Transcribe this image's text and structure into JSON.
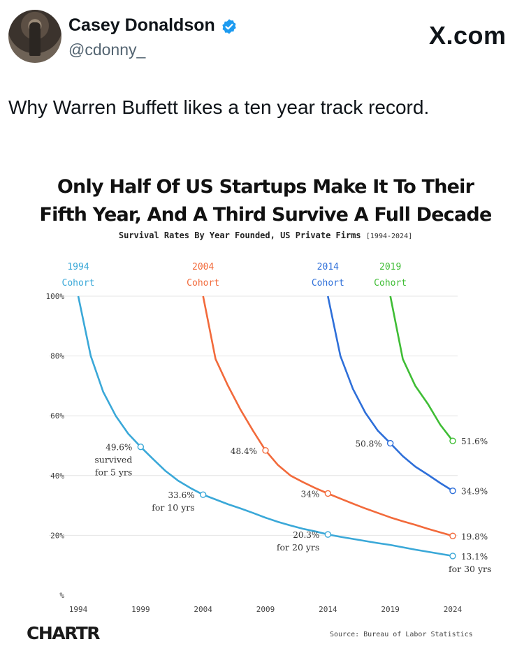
{
  "post": {
    "author_name": "Casey Donaldson",
    "author_handle": "@cdonny_",
    "site_label": "X.com",
    "text": "Why Warren Buffett likes a ten year track record."
  },
  "icons": {
    "avatar": "profile-photo",
    "verified": "verified-badge-icon"
  },
  "colors": {
    "c1994": "#3aa8d8",
    "c2004": "#f26a3b",
    "c2014": "#2e6fd9",
    "c2019": "#3fbd35",
    "verified": "#1d9bf0"
  },
  "chart_data": {
    "type": "line",
    "title_line1": "Only Half Of US Startups Make It To Their",
    "title_line2": "Fifth Year, And A Third Survive A Full Decade",
    "subtitle": "Survival Rates By Year Founded, US Private Firms",
    "subtitle_range": "[1994-2024]",
    "x_ticks": [
      "1994",
      "1999",
      "2004",
      "2009",
      "2014",
      "2019",
      "2024"
    ],
    "y_ticks": [
      "100%",
      "80%",
      "60%",
      "40%",
      "20%",
      "%"
    ],
    "xlim": [
      1994,
      2024
    ],
    "ylim": [
      0,
      100
    ],
    "series": [
      {
        "key": "c1994",
        "name_year": "1994",
        "name_word": "Cohort",
        "points": [
          [
            1994,
            100
          ],
          [
            1995,
            80
          ],
          [
            1996,
            68
          ],
          [
            1997,
            60
          ],
          [
            1998,
            54
          ],
          [
            1999,
            49.6
          ],
          [
            2000,
            45.5
          ],
          [
            2001,
            41.5
          ],
          [
            2002,
            38.3
          ],
          [
            2003,
            35.8
          ],
          [
            2004,
            33.6
          ],
          [
            2005,
            32
          ],
          [
            2006,
            30.4
          ],
          [
            2007,
            29
          ],
          [
            2008,
            27.5
          ],
          [
            2009,
            25.9
          ],
          [
            2010,
            24.5
          ],
          [
            2011,
            23.3
          ],
          [
            2012,
            22.2
          ],
          [
            2013,
            21.3
          ],
          [
            2014,
            20.3
          ],
          [
            2015,
            19.5
          ],
          [
            2016,
            18.8
          ],
          [
            2017,
            18.1
          ],
          [
            2018,
            17.4
          ],
          [
            2019,
            16.8
          ],
          [
            2020,
            16
          ],
          [
            2021,
            15.2
          ],
          [
            2022,
            14.5
          ],
          [
            2023,
            13.8
          ],
          [
            2024,
            13.1
          ]
        ]
      },
      {
        "key": "c2004",
        "name_year": "2004",
        "name_word": "Cohort",
        "points": [
          [
            2004,
            100
          ],
          [
            2005,
            79
          ],
          [
            2006,
            70
          ],
          [
            2007,
            62
          ],
          [
            2008,
            55
          ],
          [
            2009,
            48.4
          ],
          [
            2010,
            43.5
          ],
          [
            2011,
            40
          ],
          [
            2012,
            37.8
          ],
          [
            2013,
            35.8
          ],
          [
            2014,
            34
          ],
          [
            2015,
            32.3
          ],
          [
            2016,
            30.6
          ],
          [
            2017,
            29
          ],
          [
            2018,
            27.5
          ],
          [
            2019,
            26
          ],
          [
            2020,
            24.7
          ],
          [
            2021,
            23.5
          ],
          [
            2022,
            22.2
          ],
          [
            2023,
            21
          ],
          [
            2024,
            19.8
          ]
        ]
      },
      {
        "key": "c2014",
        "name_year": "2014",
        "name_word": "Cohort",
        "points": [
          [
            2014,
            100
          ],
          [
            2015,
            80
          ],
          [
            2016,
            69
          ],
          [
            2017,
            61
          ],
          [
            2018,
            55
          ],
          [
            2019,
            50.8
          ],
          [
            2020,
            46.5
          ],
          [
            2021,
            43
          ],
          [
            2022,
            40.3
          ],
          [
            2023,
            37.5
          ],
          [
            2024,
            34.9
          ]
        ]
      },
      {
        "key": "c2019",
        "name_year": "2019",
        "name_word": "Cohort",
        "points": [
          [
            2019,
            100
          ],
          [
            2020,
            79
          ],
          [
            2021,
            70
          ],
          [
            2022,
            64
          ],
          [
            2023,
            57
          ],
          [
            2024,
            51.6
          ]
        ]
      }
    ],
    "annotations": [
      {
        "key": "c1994",
        "x": 1999,
        "y": 49.6,
        "lines": [
          "49.6%",
          "survived",
          "for 5 yrs"
        ],
        "side": "left"
      },
      {
        "key": "c1994",
        "x": 2004,
        "y": 33.6,
        "lines": [
          "33.6%",
          "for 10 yrs"
        ],
        "side": "left"
      },
      {
        "key": "c1994",
        "x": 2014,
        "y": 20.3,
        "lines": [
          "20.3%",
          "for 20 yrs"
        ],
        "side": "left"
      },
      {
        "key": "c1994",
        "x": 2024,
        "y": 13.1,
        "lines": [
          "13.1%",
          "for 30 yrs"
        ],
        "side": "right"
      },
      {
        "key": "c2004",
        "x": 2009,
        "y": 48.4,
        "lines": [
          "48.4%"
        ],
        "side": "left"
      },
      {
        "key": "c2004",
        "x": 2014,
        "y": 34,
        "lines": [
          "34%"
        ],
        "side": "left"
      },
      {
        "key": "c2004",
        "x": 2024,
        "y": 19.8,
        "lines": [
          "19.8%"
        ],
        "side": "right"
      },
      {
        "key": "c2014",
        "x": 2019,
        "y": 50.8,
        "lines": [
          "50.8%"
        ],
        "side": "left"
      },
      {
        "key": "c2014",
        "x": 2024,
        "y": 34.9,
        "lines": [
          "34.9%"
        ],
        "side": "right"
      },
      {
        "key": "c2019",
        "x": 2024,
        "y": 51.6,
        "lines": [
          "51.6%"
        ],
        "side": "right"
      }
    ],
    "grid": true,
    "brand": "CHARTR",
    "source": "Source: Bureau of Labor Statistics"
  }
}
